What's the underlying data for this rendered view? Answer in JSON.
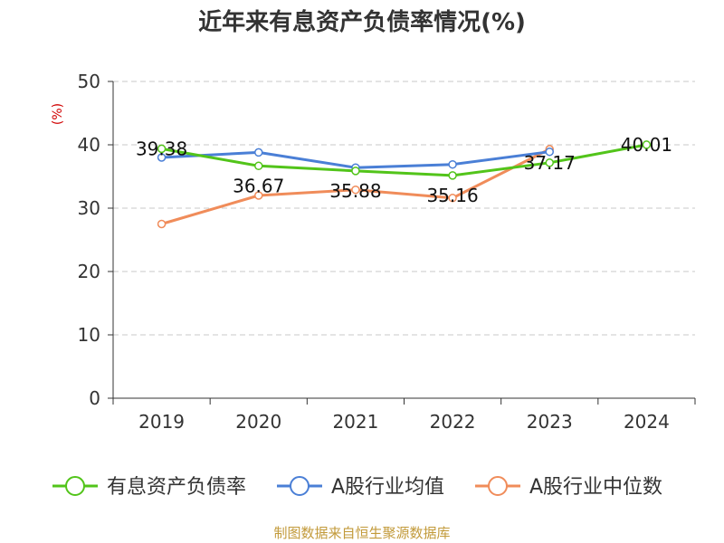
{
  "title": "近年来有息资产负债率情况(%)",
  "source": "制图数据来自恒生聚源数据库",
  "chart_data": {
    "type": "line",
    "title": "近年来有息资产负债率情况(%)",
    "ylabel": "(%)",
    "ylim": [
      0,
      50
    ],
    "yticks": [
      "0",
      "10",
      "20",
      "30",
      "40",
      "50"
    ],
    "categories": [
      "2019",
      "2020",
      "2021",
      "2022",
      "2023",
      "2024"
    ],
    "grid": true,
    "legend_position": "bottom",
    "series": [
      {
        "name": "有息资产负债率",
        "color": "#52c41a",
        "values": [
          39.38,
          36.67,
          35.88,
          35.16,
          37.17,
          40.01
        ],
        "labels": [
          "39.38",
          "36.67",
          "35.88",
          "35.16",
          "37.17",
          "40.01"
        ]
      },
      {
        "name": "A股行业均值",
        "color": "#4a7fd6",
        "values": [
          38.0,
          38.8,
          36.4,
          36.9,
          38.9,
          null
        ]
      },
      {
        "name": "A股行业中位数",
        "color": "#f08c5a",
        "values": [
          27.5,
          32.0,
          32.9,
          31.6,
          39.3,
          null
        ]
      }
    ]
  }
}
